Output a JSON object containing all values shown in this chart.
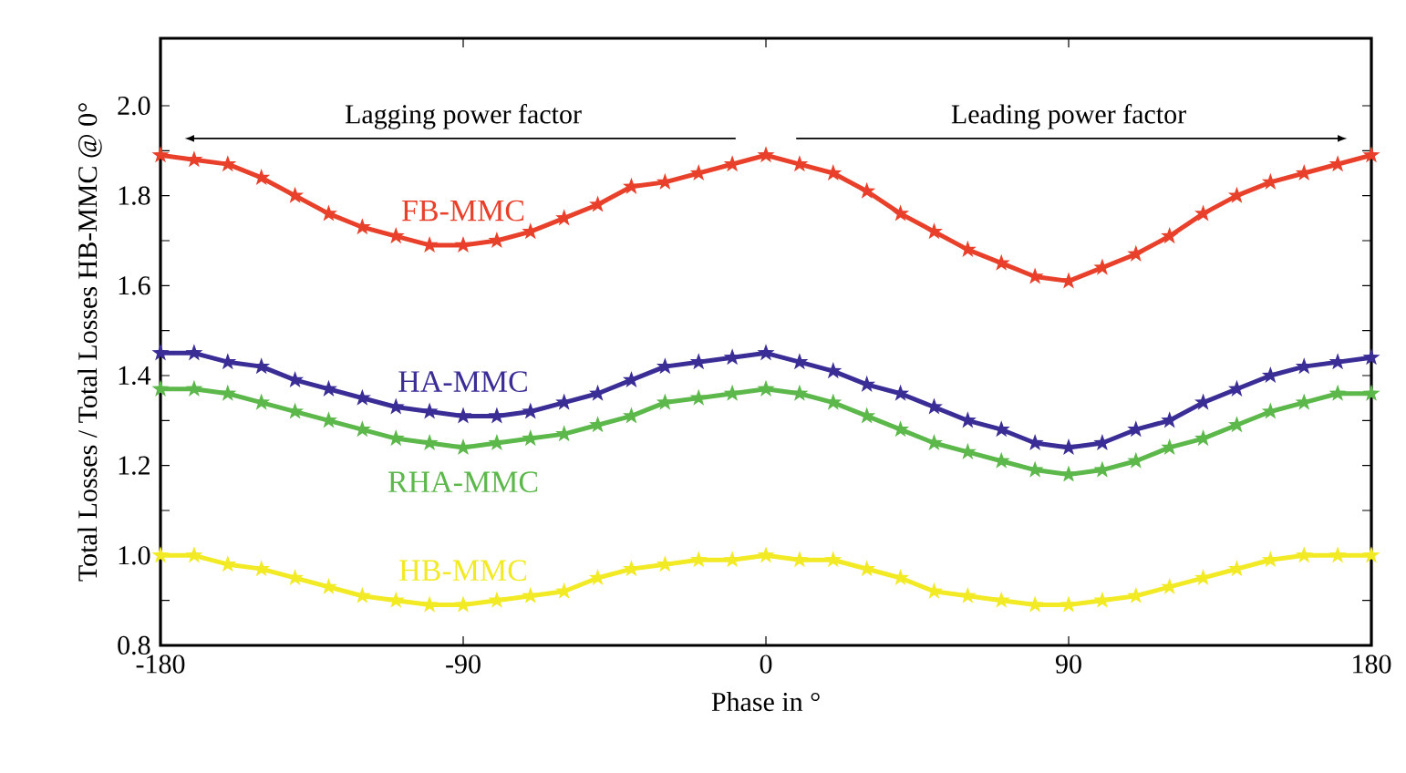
{
  "chart_data": {
    "type": "line",
    "xlabel": "Phase in °",
    "ylabel": "Total Losses / Total Losses HB-MMC @ 0°",
    "annotations": [
      "Lagging power factor",
      "Leading power factor"
    ],
    "x": [
      -180,
      -170,
      -160,
      -150,
      -140,
      -130,
      -120,
      -110,
      -100,
      -90,
      -80,
      -70,
      -60,
      -50,
      -40,
      -30,
      -20,
      -10,
      0,
      10,
      20,
      30,
      40,
      50,
      60,
      70,
      80,
      90,
      100,
      110,
      120,
      130,
      140,
      150,
      160,
      170,
      180
    ],
    "series": [
      {
        "name": "FB-MMC",
        "color": "#e8402a",
        "values": [
          1.89,
          1.88,
          1.87,
          1.84,
          1.8,
          1.76,
          1.73,
          1.71,
          1.69,
          1.69,
          1.7,
          1.72,
          1.75,
          1.78,
          1.82,
          1.83,
          1.85,
          1.87,
          1.89,
          1.87,
          1.85,
          1.81,
          1.76,
          1.72,
          1.68,
          1.65,
          1.62,
          1.61,
          1.64,
          1.67,
          1.71,
          1.76,
          1.8,
          1.83,
          1.85,
          1.87,
          1.89
        ]
      },
      {
        "name": "HA-MMC",
        "color": "#3a2d96",
        "values": [
          1.45,
          1.45,
          1.43,
          1.42,
          1.39,
          1.37,
          1.35,
          1.33,
          1.32,
          1.31,
          1.31,
          1.32,
          1.34,
          1.36,
          1.39,
          1.42,
          1.43,
          1.44,
          1.45,
          1.43,
          1.41,
          1.38,
          1.36,
          1.33,
          1.3,
          1.28,
          1.25,
          1.24,
          1.25,
          1.28,
          1.3,
          1.34,
          1.37,
          1.4,
          1.42,
          1.43,
          1.44
        ]
      },
      {
        "name": "RHA-MMC",
        "color": "#5cb84a",
        "values": [
          1.37,
          1.37,
          1.36,
          1.34,
          1.32,
          1.3,
          1.28,
          1.26,
          1.25,
          1.24,
          1.25,
          1.26,
          1.27,
          1.29,
          1.31,
          1.34,
          1.35,
          1.36,
          1.37,
          1.36,
          1.34,
          1.31,
          1.28,
          1.25,
          1.23,
          1.21,
          1.19,
          1.18,
          1.19,
          1.21,
          1.24,
          1.26,
          1.29,
          1.32,
          1.34,
          1.36,
          1.36
        ]
      },
      {
        "name": "HB-MMC",
        "color": "#f2ea25",
        "values": [
          1.0,
          1.0,
          0.98,
          0.97,
          0.95,
          0.93,
          0.91,
          0.9,
          0.89,
          0.89,
          0.9,
          0.91,
          0.92,
          0.95,
          0.97,
          0.98,
          0.99,
          0.99,
          1.0,
          0.99,
          0.99,
          0.97,
          0.95,
          0.92,
          0.91,
          0.9,
          0.89,
          0.89,
          0.9,
          0.91,
          0.93,
          0.95,
          0.97,
          0.99,
          1.0,
          1.0,
          1.0
        ]
      }
    ],
    "xlim": [
      -180,
      180
    ],
    "ylim": [
      0.8,
      2.15
    ],
    "xticks": [
      -180,
      -90,
      0,
      90,
      180
    ],
    "yticks": [
      0.8,
      {
        "value": 0.9,
        "label": null
      },
      {
        "value": 1,
        "label": "1.0"
      },
      {
        "value": 1.1,
        "label": null
      },
      1.2,
      {
        "value": 1.3,
        "label": null
      },
      1.4,
      {
        "value": 1.5,
        "label": null
      },
      1.6,
      {
        "value": 1.7,
        "label": null
      },
      1.8,
      {
        "value": 1.9,
        "label": null
      },
      {
        "value": 2,
        "label": "2.0"
      }
    ],
    "marker": "star",
    "line_style": "solid"
  }
}
